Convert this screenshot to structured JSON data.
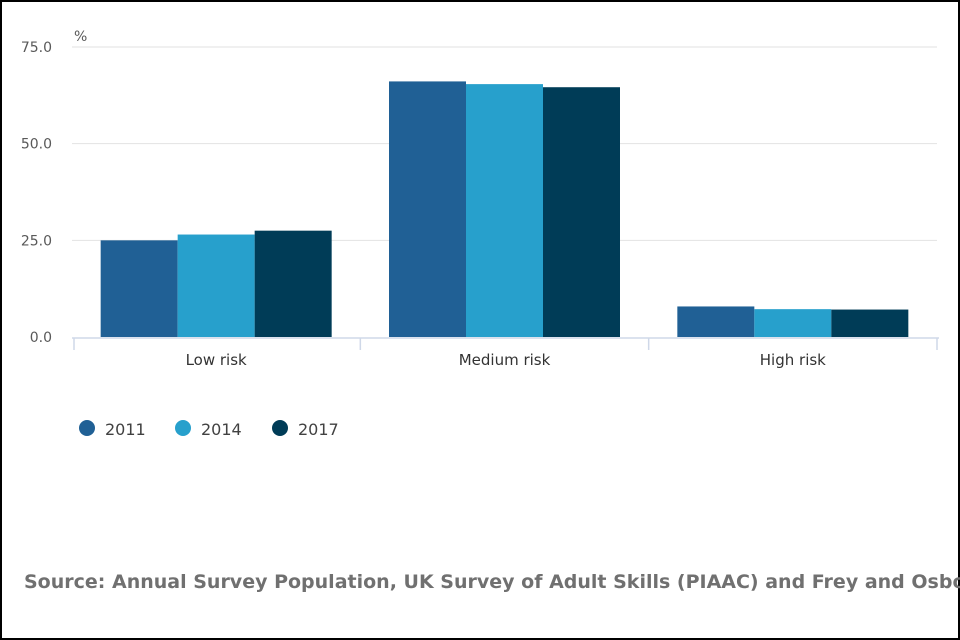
{
  "chart_data": {
    "type": "bar",
    "unit_label": "%",
    "categories": [
      "Low risk",
      "Medium risk",
      "High risk"
    ],
    "series": [
      {
        "name": "2011",
        "color": "#206095",
        "values": [
          25.0,
          66.1,
          7.9
        ]
      },
      {
        "name": "2014",
        "color": "#27a0cc",
        "values": [
          26.5,
          65.4,
          7.2
        ]
      },
      {
        "name": "2017",
        "color": "#003c57",
        "values": [
          27.5,
          64.6,
          7.1
        ]
      }
    ],
    "ylim": [
      0,
      75
    ],
    "yticks": [
      "0.0",
      "25.0",
      "50.0",
      "75.0"
    ],
    "ytick_values": [
      0,
      25,
      50,
      75
    ],
    "xlabel": "",
    "ylabel": "%",
    "grid": true,
    "legend_position": "bottom-left"
  },
  "source_text": "Source: Annual Survey Population, UK Survey of Adult Skills (PIAAC) and Frey and Osborne"
}
